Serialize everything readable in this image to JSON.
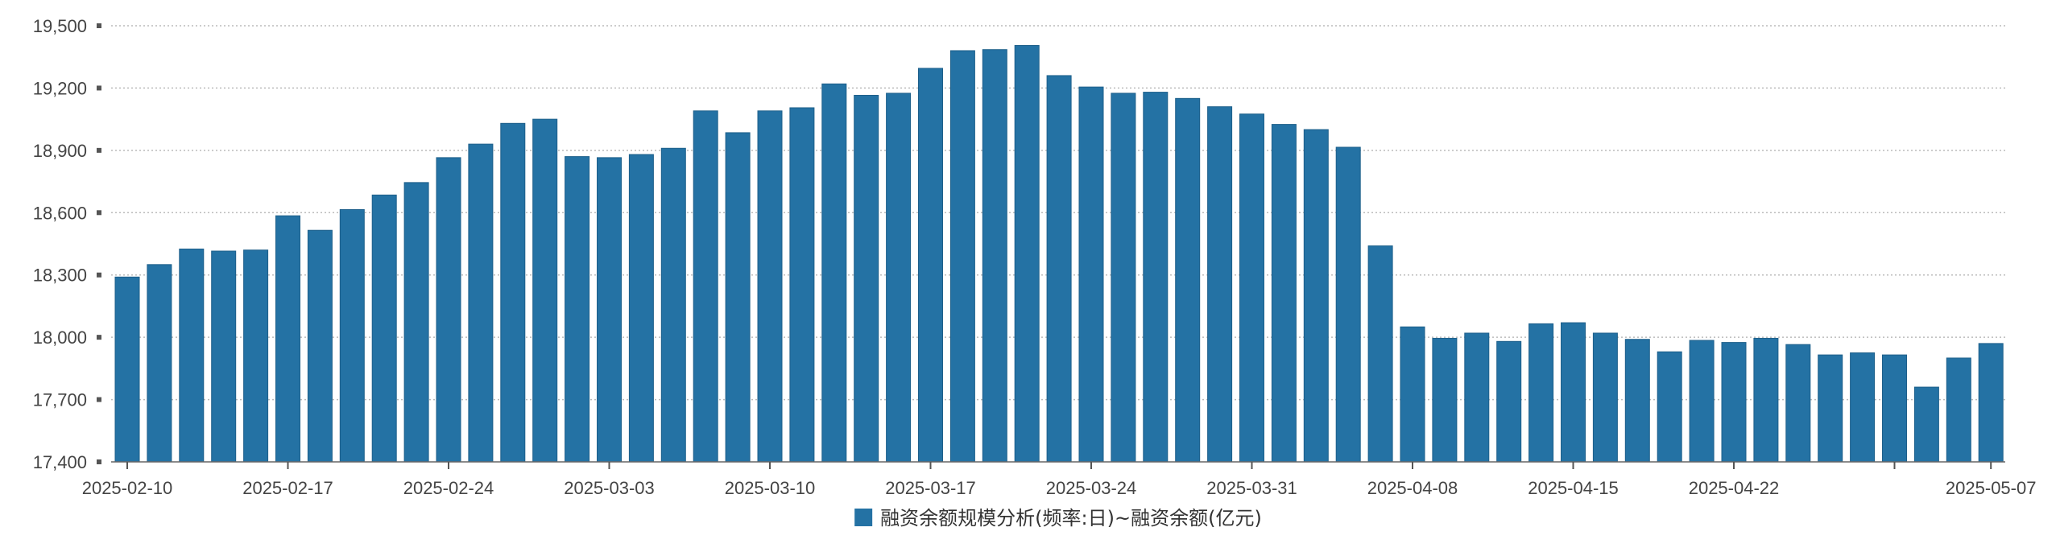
{
  "chart_data": {
    "type": "bar",
    "ylim": [
      17400,
      19500
    ],
    "y_ticks": [
      "19,500",
      "19,200",
      "18,900",
      "18,600",
      "18,300",
      "18,000",
      "17,700",
      "17,400"
    ],
    "y_tick_values": [
      19500,
      19200,
      18900,
      18600,
      18300,
      18000,
      17700,
      17400
    ],
    "x_tick_labels": [
      {
        "label": "2025-02-10",
        "index": 0
      },
      {
        "label": "2025-02-17",
        "index": 5
      },
      {
        "label": "2025-02-24",
        "index": 10
      },
      {
        "label": "2025-03-03",
        "index": 15
      },
      {
        "label": "2025-03-10",
        "index": 20
      },
      {
        "label": "2025-03-17",
        "index": 25
      },
      {
        "label": "2025-03-24",
        "index": 30
      },
      {
        "label": "2025-03-31",
        "index": 35
      },
      {
        "label": "2025-04-08",
        "index": 40
      },
      {
        "label": "2025-04-15",
        "index": 45
      },
      {
        "label": "2025-04-22",
        "index": 50
      },
      {
        "label": "2025-05-07",
        "index": 58
      }
    ],
    "x_tick_mark_indices": [
      0,
      5,
      10,
      15,
      20,
      25,
      30,
      35,
      40,
      45,
      50,
      55,
      58
    ],
    "values": [
      18290,
      18350,
      18425,
      18415,
      18420,
      18585,
      18515,
      18615,
      18685,
      18745,
      18865,
      18930,
      19030,
      19050,
      18870,
      18865,
      18880,
      18910,
      19090,
      18985,
      19090,
      19105,
      19220,
      19165,
      19175,
      19295,
      19380,
      19385,
      19405,
      19260,
      19205,
      19175,
      19180,
      19150,
      19110,
      19075,
      19025,
      19000,
      18915,
      18440,
      18050,
      17995,
      18020,
      17980,
      18065,
      18070,
      18020,
      17990,
      17930,
      17985,
      17975,
      17995,
      17965,
      17915,
      17925,
      17915,
      17760,
      17900,
      17970
    ],
    "series": [
      {
        "name": "融资余额规模分析(频率:日)~融资余额(亿元)"
      }
    ],
    "grid": true,
    "legend": "bottom-center",
    "color": "#2472a4"
  }
}
